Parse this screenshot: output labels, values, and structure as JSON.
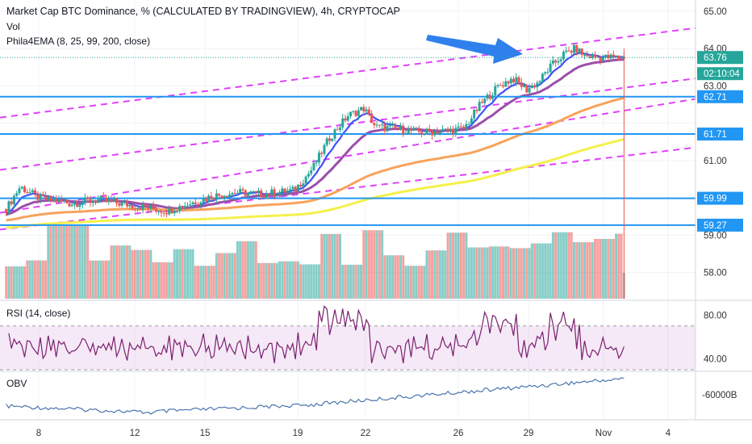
{
  "header": {
    "title": "Market Cap BTC Dominance, % (CALCULATED BY TRADINGVIEW), 4h, CRYPTOCAP",
    "vol_label": "Vol",
    "ema_label": "Phila4EMA (8, 25, 99, 200, close)"
  },
  "panes": {
    "rsi_label": "RSI (14, close)",
    "obv_label": "OBV"
  },
  "colors": {
    "up": "#26a69a",
    "down": "#ef5350",
    "ema8": "#3f51f5",
    "ema25": "#9c4fa8",
    "ema99": "#f7a35c",
    "ema200": "#f5f04a",
    "channel": "#e040fb",
    "level_line": "#2196f3",
    "arrow": "#2f80ed",
    "rsi": "#7b1f6e",
    "obv": "#3b6aa8",
    "price_tag": "#26a69a",
    "level_tag": "#2196f3"
  },
  "chart_data": [
    {
      "type": "candlestick",
      "pane": "price",
      "ylim": [
        57.3,
        65.3
      ],
      "y_ticks": [
        "65.00",
        "64.00",
        "63.00",
        "61.00",
        "59.00",
        "58.00"
      ],
      "x_ticks": [
        "8",
        "12",
        "15",
        "19",
        "22",
        "26",
        "29",
        "Nov",
        "4"
      ],
      "current_price": "63.76",
      "countdown": "02:10:04",
      "horizontal_levels": [
        "62.71",
        "61.71",
        "59.99",
        "59.27"
      ],
      "series": [
        {
          "name": "EMA 8"
        },
        {
          "name": "EMA 25"
        },
        {
          "name": "EMA 99"
        },
        {
          "name": "EMA 200"
        }
      ]
    },
    {
      "type": "bar",
      "pane": "volume",
      "name": "Vol"
    },
    {
      "type": "line",
      "pane": "rsi",
      "name": "RSI (14, close)",
      "ylim": [
        30,
        92
      ],
      "y_ticks": [
        "80.00",
        "40.00"
      ],
      "bands": [
        70,
        30
      ]
    },
    {
      "type": "line",
      "pane": "obv",
      "name": "OBV",
      "y_ticks": [
        "-60000B"
      ]
    }
  ]
}
